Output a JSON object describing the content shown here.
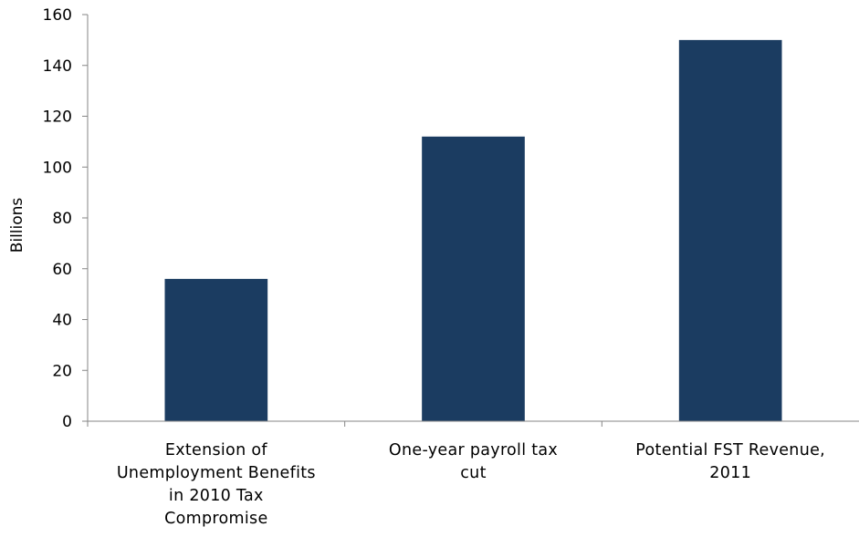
{
  "chart_data": {
    "type": "bar",
    "title": "",
    "xlabel": "",
    "ylabel": "Billions",
    "ylim": [
      0,
      160
    ],
    "yticks": [
      0,
      20,
      40,
      60,
      80,
      100,
      120,
      140,
      160
    ],
    "grid": false,
    "legend": "none",
    "categories": [
      [
        "Extension of",
        "Unemployment Benefits",
        "in 2010 Tax",
        "Compromise"
      ],
      [
        "One-year payroll tax",
        "cut"
      ],
      [
        "Potential FST Revenue,",
        "2011"
      ]
    ],
    "values": [
      56,
      112,
      150
    ],
    "colors": {
      "bar": "#1b3c61",
      "axis": "#868686",
      "text": "#000000"
    }
  }
}
